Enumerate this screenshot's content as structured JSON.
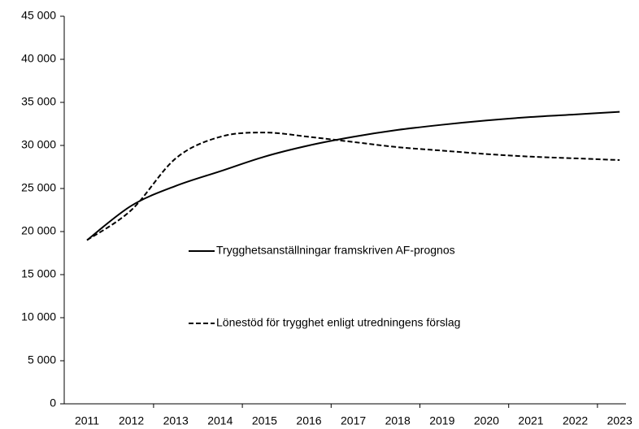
{
  "chart_data": {
    "type": "line",
    "categories": [
      "2011",
      "2012",
      "2013",
      "2014",
      "2015",
      "2016",
      "2017",
      "2018",
      "2019",
      "2020",
      "2021",
      "2022",
      "2023"
    ],
    "series": [
      {
        "name": "Trygghetsanställningar framskriven AF-prognos",
        "color": "#000000",
        "dash": false,
        "values": [
          19000,
          23000,
          25300,
          27000,
          28700,
          30000,
          31000,
          31800,
          32400,
          32900,
          33300,
          33600,
          33900
        ]
      },
      {
        "name": "Lönestöd för trygghet enligt utredningens förslag",
        "color": "#000000",
        "dash": true,
        "values": [
          19000,
          22500,
          28500,
          31000,
          31500,
          31000,
          30400,
          29800,
          29400,
          29000,
          28700,
          28500,
          28300
        ]
      }
    ],
    "ylim": [
      0,
      45000
    ],
    "yticks": [
      {
        "value": 0,
        "label": "0"
      },
      {
        "value": 5000,
        "label": "5 000"
      },
      {
        "value": 10000,
        "label": "10 000"
      },
      {
        "value": 15000,
        "label": "15 000"
      },
      {
        "value": 20000,
        "label": "20 000"
      },
      {
        "value": 25000,
        "label": "25 000"
      },
      {
        "value": 30000,
        "label": "30 000"
      },
      {
        "value": 35000,
        "label": "35 000"
      },
      {
        "value": 40000,
        "label": "40 000"
      },
      {
        "value": 45000,
        "label": "45 000"
      }
    ],
    "grid": false
  }
}
